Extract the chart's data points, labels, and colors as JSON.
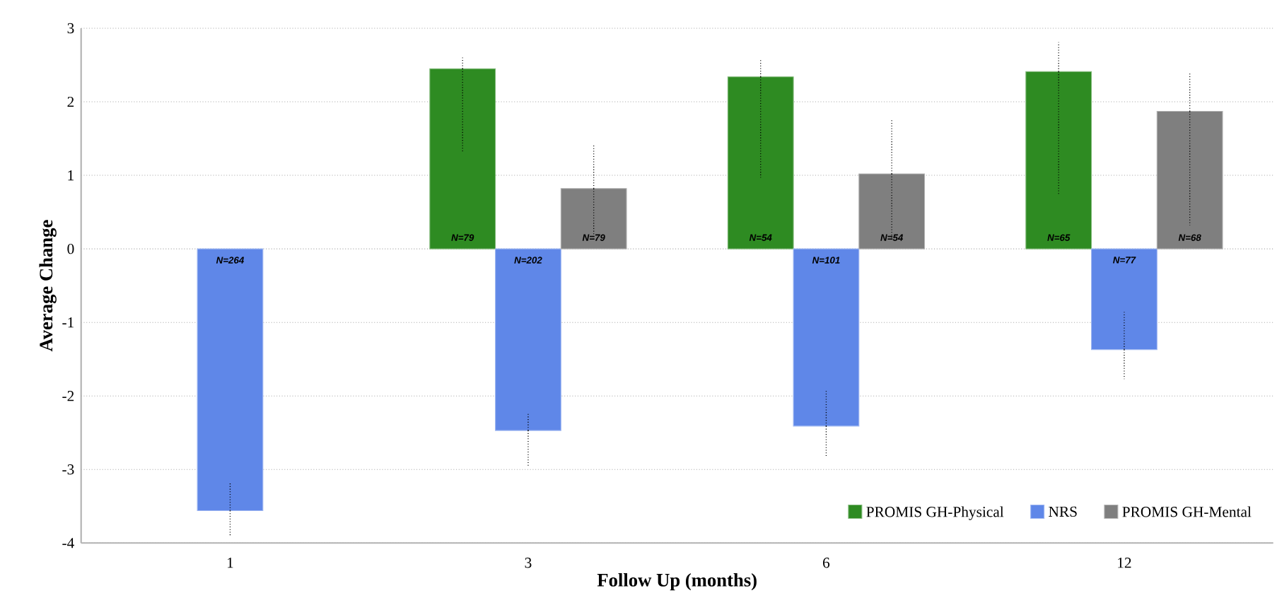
{
  "chart_data": {
    "type": "bar",
    "xlabel": "Follow Up (months)",
    "ylabel": "Average Change",
    "categories": [
      "1",
      "3",
      "6",
      "12"
    ],
    "series": [
      {
        "name": "PROMIS GH-Physical",
        "color": "#2e8b22",
        "values": [
          null,
          2.45,
          2.34,
          2.41
        ],
        "errors": [
          null,
          [
            1.31,
            2.6
          ],
          [
            0.97,
            2.59
          ],
          [
            0.74,
            2.81
          ]
        ]
      },
      {
        "name": "NRS",
        "color": "#5f87e8",
        "values": [
          -3.56,
          -2.47,
          -2.41,
          -1.37
        ],
        "errors": [
          [
            -3.91,
            -3.18
          ],
          [
            -2.95,
            -2.22
          ],
          [
            -2.84,
            -1.93
          ],
          [
            -1.77,
            -0.86
          ]
        ]
      },
      {
        "name": "PROMIS GH-Mental",
        "color": "#7f7f7f",
        "values": [
          null,
          0.82,
          1.02,
          1.87
        ],
        "errors": [
          null,
          [
            0.12,
            1.41
          ],
          [
            0.13,
            1.75
          ],
          [
            0.32,
            2.4
          ]
        ]
      }
    ],
    "annotations": [
      "N=264",
      "N=79",
      "N=202",
      "N=79",
      "N=54",
      "N=101",
      "N=54",
      "N=65",
      "N=77",
      "N=68"
    ],
    "ylim": [
      -4,
      3
    ],
    "yticks": [
      -4,
      -3,
      -2,
      -1,
      0,
      1,
      2,
      3
    ],
    "grid": "y",
    "legend": "bottom right"
  }
}
